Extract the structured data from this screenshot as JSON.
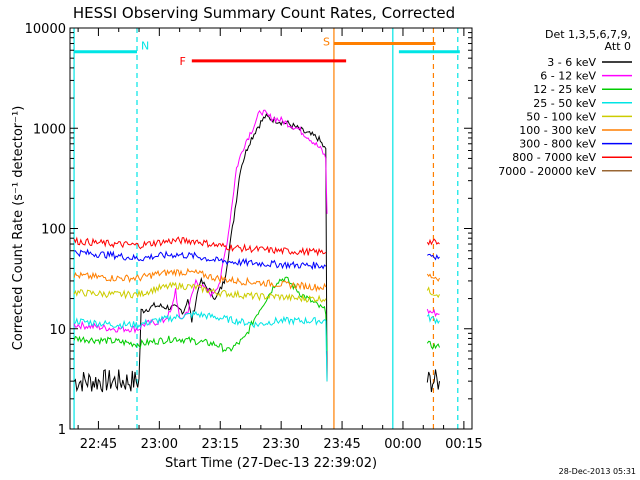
{
  "chart_data": {
    "type": "line",
    "title": "HESSI Observing Summary Count Rates, Corrected",
    "xlabel": "Start Time (27-Dec-13 22:39:02)",
    "ylabel": "Corrected Count Rate (s⁻¹ detector⁻¹)",
    "yscale": "log",
    "ylim": [
      1,
      10000
    ],
    "xlim_minutes": [
      -1,
      98
    ],
    "x_ticks": [
      "22:45",
      "23:00",
      "23:15",
      "23:30",
      "23:45",
      "00:00",
      "00:15"
    ],
    "y_ticks": [
      "1",
      "10",
      "100",
      "1000",
      "10000"
    ],
    "grid": false,
    "legend_placement": "outside-right",
    "legend_title_line1": "Det 1,3,5,6,7,9,",
    "legend_title_line2": "Att 0",
    "timestamp": "28-Dec-2013 05:31",
    "series": [
      {
        "name": "3 - 6 keV",
        "color": "#000000",
        "points": [
          [
            0,
            3
          ],
          [
            16,
            3
          ],
          [
            16.5,
            15
          ],
          [
            20,
            17
          ],
          [
            25,
            16
          ],
          [
            27,
            15
          ],
          [
            28,
            20
          ],
          [
            29,
            12
          ],
          [
            31,
            30
          ],
          [
            33,
            25
          ],
          [
            35,
            20
          ],
          [
            37,
            30
          ],
          [
            39,
            100
          ],
          [
            41,
            400
          ],
          [
            43,
            700
          ],
          [
            45,
            1000
          ],
          [
            47,
            1300
          ],
          [
            50,
            1200
          ],
          [
            53,
            1100
          ],
          [
            57,
            900
          ],
          [
            60,
            800
          ],
          [
            61,
            700
          ],
          [
            62,
            600
          ],
          [
            62.3,
            3
          ],
          [
            null,
            null
          ],
          [
            87,
            3
          ],
          [
            90,
            3
          ]
        ]
      },
      {
        "name": "6 - 12 keV",
        "color": "#ff00ff",
        "points": [
          [
            0,
            11
          ],
          [
            10,
            10
          ],
          [
            16,
            10
          ],
          [
            17,
            11
          ],
          [
            22,
            12
          ],
          [
            24,
            15
          ],
          [
            25,
            25
          ],
          [
            26,
            12
          ],
          [
            28,
            15
          ],
          [
            30,
            30
          ],
          [
            32,
            25
          ],
          [
            34,
            22
          ],
          [
            36,
            30
          ],
          [
            38,
            90
          ],
          [
            40,
            400
          ],
          [
            42,
            700
          ],
          [
            44,
            1000
          ],
          [
            46,
            1500
          ],
          [
            48,
            1300
          ],
          [
            51,
            1200
          ],
          [
            55,
            1000
          ],
          [
            58,
            800
          ],
          [
            61,
            600
          ],
          [
            62,
            500
          ],
          [
            62.3,
            140
          ],
          [
            null,
            null
          ],
          [
            87,
            15
          ],
          [
            90,
            14
          ]
        ]
      },
      {
        "name": "12 - 25 keV",
        "color": "#00cc00",
        "points": [
          [
            0,
            8
          ],
          [
            10,
            7.5
          ],
          [
            16,
            7
          ],
          [
            20,
            7.5
          ],
          [
            25,
            8
          ],
          [
            30,
            7.5
          ],
          [
            35,
            7
          ],
          [
            38,
            6
          ],
          [
            42,
            8
          ],
          [
            45,
            14
          ],
          [
            48,
            22
          ],
          [
            50,
            30
          ],
          [
            52,
            32
          ],
          [
            56,
            22
          ],
          [
            60,
            17
          ],
          [
            62,
            15
          ],
          [
            62.3,
            6
          ],
          [
            null,
            null
          ],
          [
            87,
            7
          ],
          [
            90,
            6.5
          ]
        ]
      },
      {
        "name": "25 - 50 keV",
        "color": "#00e5e5",
        "points": [
          [
            0,
            12
          ],
          [
            10,
            11
          ],
          [
            16,
            11
          ],
          [
            20,
            12
          ],
          [
            25,
            13
          ],
          [
            30,
            14
          ],
          [
            35,
            13
          ],
          [
            40,
            12
          ],
          [
            45,
            11
          ],
          [
            50,
            12
          ],
          [
            55,
            12
          ],
          [
            60,
            12
          ],
          [
            62,
            12
          ],
          [
            62.3,
            3
          ],
          [
            null,
            null
          ],
          [
            87,
            13
          ],
          [
            90,
            12
          ]
        ]
      },
      {
        "name": "50 - 100 keV",
        "color": "#cccc00",
        "points": [
          [
            0,
            23
          ],
          [
            10,
            22
          ],
          [
            16,
            22
          ],
          [
            20,
            25
          ],
          [
            25,
            27
          ],
          [
            30,
            26
          ],
          [
            35,
            23
          ],
          [
            40,
            22
          ],
          [
            45,
            21
          ],
          [
            50,
            21
          ],
          [
            55,
            20
          ],
          [
            60,
            20
          ],
          [
            62,
            20
          ],
          [
            null,
            null
          ],
          [
            87,
            24
          ],
          [
            90,
            22
          ]
        ]
      },
      {
        "name": "100 - 300 keV",
        "color": "#ff7f00",
        "points": [
          [
            0,
            34
          ],
          [
            10,
            32
          ],
          [
            16,
            32
          ],
          [
            20,
            35
          ],
          [
            25,
            37
          ],
          [
            30,
            36
          ],
          [
            35,
            32
          ],
          [
            40,
            30
          ],
          [
            45,
            29
          ],
          [
            50,
            28
          ],
          [
            55,
            27
          ],
          [
            60,
            26
          ],
          [
            62,
            26
          ],
          [
            null,
            null
          ],
          [
            87,
            34
          ],
          [
            90,
            32
          ]
        ]
      },
      {
        "name": "300 - 800 keV",
        "color": "#0000ff",
        "points": [
          [
            0,
            58
          ],
          [
            10,
            54
          ],
          [
            16,
            50
          ],
          [
            20,
            53
          ],
          [
            25,
            55
          ],
          [
            30,
            53
          ],
          [
            35,
            48
          ],
          [
            40,
            46
          ],
          [
            45,
            45
          ],
          [
            50,
            44
          ],
          [
            55,
            43
          ],
          [
            60,
            43
          ],
          [
            62,
            42
          ],
          [
            null,
            null
          ],
          [
            87,
            56
          ],
          [
            90,
            52
          ]
        ]
      },
      {
        "name": "800 - 7000 keV",
        "color": "#ff0000",
        "points": [
          [
            0,
            75
          ],
          [
            10,
            70
          ],
          [
            16,
            68
          ],
          [
            20,
            72
          ],
          [
            25,
            76
          ],
          [
            30,
            75
          ],
          [
            35,
            68
          ],
          [
            40,
            64
          ],
          [
            45,
            62
          ],
          [
            50,
            60
          ],
          [
            55,
            59
          ],
          [
            60,
            58
          ],
          [
            62,
            58
          ],
          [
            null,
            null
          ],
          [
            87,
            75
          ],
          [
            90,
            70
          ]
        ]
      },
      {
        "name": "7000 - 20000 keV",
        "color": "#996633",
        "points": []
      }
    ],
    "flags": [
      {
        "label": "N",
        "color": "#00e5e5",
        "segments": [
          [
            0,
            15.5
          ],
          [
            80,
            95
          ]
        ],
        "level": 5800
      },
      {
        "label": "F",
        "color": "#ff0000",
        "segments": [
          [
            29,
            67
          ]
        ],
        "level": 4700
      },
      {
        "label": "S",
        "color": "#ff7f00",
        "segments": [
          [
            64,
            89
          ]
        ],
        "level": 7000
      }
    ],
    "markers": [
      {
        "x": 0,
        "color": "#00e5e5",
        "style": "solid"
      },
      {
        "x": 15.5,
        "color": "#00e5e5",
        "style": "dashed"
      },
      {
        "x": 64,
        "color": "#ff7f00",
        "style": "solid"
      },
      {
        "x": 78.5,
        "color": "#00e5e5",
        "style": "solid"
      },
      {
        "x": 88.5,
        "color": "#ff7f00",
        "style": "dashed"
      },
      {
        "x": 94.5,
        "color": "#00e5e5",
        "style": "dashed"
      }
    ]
  }
}
